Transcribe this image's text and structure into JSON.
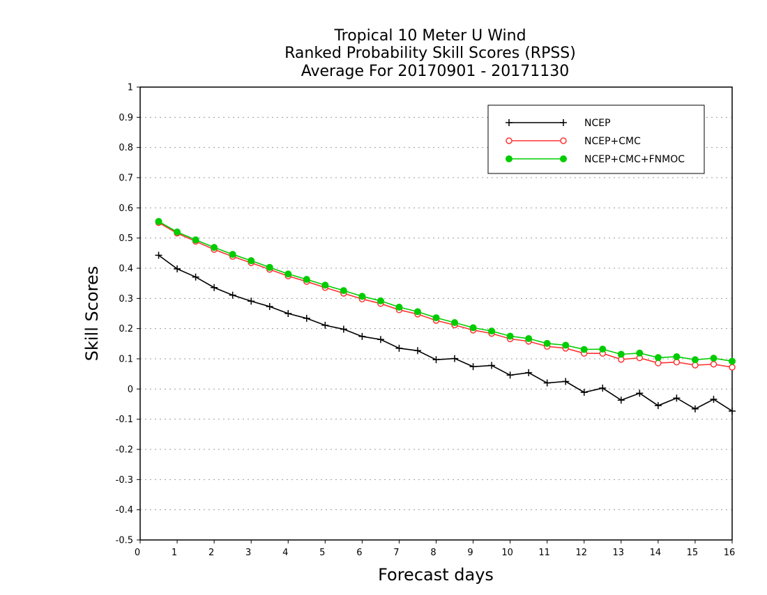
{
  "chart_data": {
    "type": "line",
    "title_lines": [
      "Tropical 10 Meter U Wind",
      "Ranked Probability Skill Scores (RPSS)",
      "Average For 20170901 - 20171130"
    ],
    "xlabel": "Forecast days",
    "ylabel": "Skill Scores",
    "xlim": [
      0,
      16
    ],
    "ylim": [
      -0.5,
      1
    ],
    "x_ticks": [
      "0",
      "1",
      "2",
      "3",
      "4",
      "5",
      "6",
      "7",
      "8",
      "9",
      "10",
      "11",
      "12",
      "13",
      "14",
      "15",
      "16"
    ],
    "y_ticks": [
      "1",
      "0.9",
      "0.8",
      "0.7",
      "0.6",
      "0.5",
      "0.4",
      "0.3",
      "0.2",
      "0.1",
      "0",
      "-0.1",
      "-0.2",
      "-0.3",
      "-0.4",
      "-0.5"
    ],
    "grid": "dotted horizontal",
    "legend_position": "top-right",
    "x": [
      0.5,
      1,
      1.5,
      2,
      2.5,
      3,
      3.5,
      4,
      4.5,
      5,
      5.5,
      6,
      6.5,
      7,
      7.5,
      8,
      8.5,
      9,
      9.5,
      10,
      10.5,
      11,
      11.5,
      12,
      12.5,
      13,
      13.5,
      14,
      14.5,
      15,
      15.5,
      16
    ],
    "series": [
      {
        "name": "NCEP",
        "color": "#000000",
        "marker": "plus",
        "values": [
          0.443,
          0.398,
          0.371,
          0.336,
          0.311,
          0.291,
          0.273,
          0.25,
          0.234,
          0.211,
          0.198,
          0.174,
          0.164,
          0.135,
          0.127,
          0.097,
          0.101,
          0.074,
          0.078,
          0.046,
          0.054,
          0.02,
          0.025,
          -0.011,
          0.003,
          -0.037,
          -0.014,
          -0.055,
          -0.03,
          -0.066,
          -0.034,
          -0.073
        ]
      },
      {
        "name": "NCEP+CMC",
        "color": "#ff3333",
        "marker": "open-circle",
        "values": [
          0.551,
          0.516,
          0.489,
          0.462,
          0.439,
          0.418,
          0.396,
          0.374,
          0.356,
          0.336,
          0.317,
          0.298,
          0.283,
          0.262,
          0.248,
          0.227,
          0.212,
          0.195,
          0.184,
          0.166,
          0.158,
          0.141,
          0.135,
          0.118,
          0.118,
          0.098,
          0.103,
          0.086,
          0.089,
          0.079,
          0.082,
          0.072
        ]
      },
      {
        "name": "NCEP+CMC+FNMOC",
        "color": "#00cc00",
        "marker": "filled-circle",
        "values": [
          0.555,
          0.52,
          0.494,
          0.469,
          0.446,
          0.425,
          0.403,
          0.381,
          0.363,
          0.344,
          0.326,
          0.307,
          0.292,
          0.271,
          0.256,
          0.236,
          0.22,
          0.203,
          0.192,
          0.175,
          0.167,
          0.151,
          0.145,
          0.131,
          0.132,
          0.115,
          0.119,
          0.104,
          0.107,
          0.097,
          0.102,
          0.092
        ]
      }
    ]
  }
}
